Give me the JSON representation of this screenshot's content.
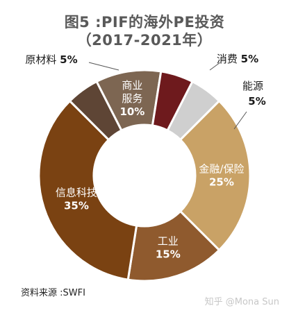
{
  "header": {
    "title_line1": "图5 :PIF的海外PE投资",
    "title_line2": "（2017-2021年）"
  },
  "footer": {
    "source": "资料来源 :SWFI",
    "watermark": "知乎 @Mona Sun"
  },
  "chart_data": {
    "type": "pie",
    "style": "donut",
    "title": "图5 :PIF的海外PE投资（2017-2021年）",
    "categories": [
      "商业服务",
      "消费",
      "能源",
      "金融/保险",
      "工业",
      "信息科技",
      "原材料"
    ],
    "labels": [
      "商业\n服务",
      "消费",
      "能源",
      "金融/保险",
      "工业",
      "信息科技",
      "原材料"
    ],
    "value_labels": [
      "10%",
      "5%",
      "5%",
      "25%",
      "15%",
      "35%",
      "5%"
    ],
    "values": [
      10,
      5,
      5,
      25,
      15,
      35,
      5
    ],
    "colors": [
      "#7d6652",
      "#6e1a1d",
      "#cfcfcf",
      "#c9a266",
      "#8f5a2e",
      "#7a4212",
      "#5e4535"
    ],
    "legend": "none"
  }
}
